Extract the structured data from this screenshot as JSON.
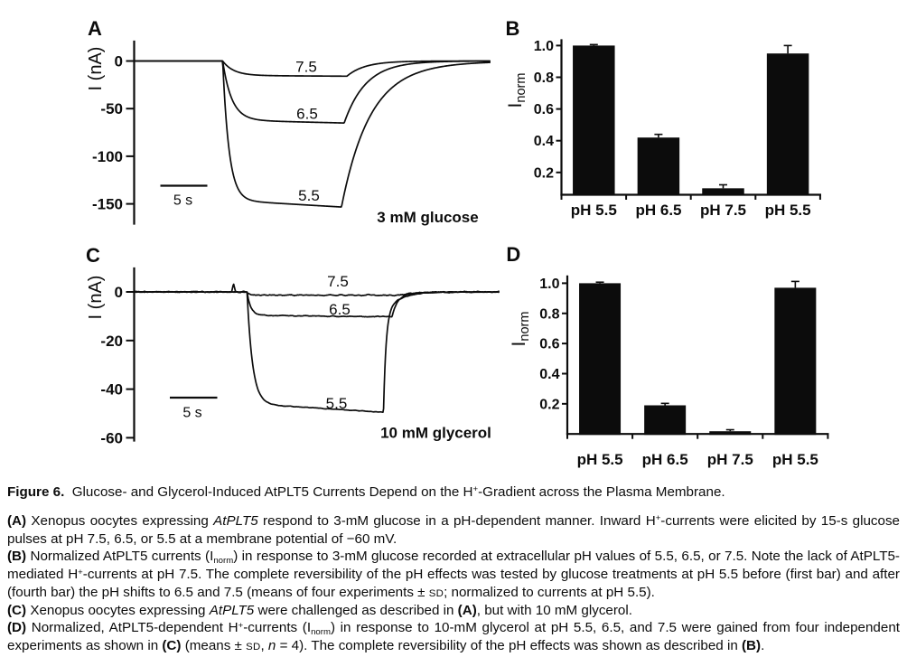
{
  "figure": {
    "panels": {
      "a": {
        "letter": "A",
        "y_axis_label": "I (nA)",
        "yticks": [
          "0",
          "-50",
          "-100",
          "-150"
        ],
        "scale_bar_label": "5 s",
        "condition": "3 mM glucose",
        "trace_labels": [
          "7.5",
          "6.5",
          "5.5"
        ]
      },
      "b": {
        "letter": "B",
        "y_axis_label_main": "I",
        "y_axis_label_sub": "norm",
        "yticks": [
          "1.0",
          "0.8",
          "0.6",
          "0.4",
          "0.2"
        ],
        "categories": [
          "pH 5.5",
          "pH 6.5",
          "pH 7.5",
          "pH 5.5"
        ]
      },
      "c": {
        "letter": "C",
        "y_axis_label": "I (nA)",
        "yticks": [
          "0",
          "-20",
          "-40",
          "-60"
        ],
        "scale_bar_label": "5 s",
        "condition": "10 mM glycerol",
        "trace_labels": [
          "7.5",
          "6.5",
          "5.5"
        ]
      },
      "d": {
        "letter": "D",
        "y_axis_label_main": "I",
        "y_axis_label_sub": "norm",
        "yticks": [
          "1.0",
          "0.8",
          "0.6",
          "0.4",
          "0.2"
        ],
        "categories": [
          "pH 5.5",
          "pH 6.5",
          "pH 7.5",
          "pH 5.5"
        ]
      }
    },
    "caption": {
      "lines": [
        {
          "justify": false,
          "runs": [
            {
              "t": "Figure 6.",
              "b": true
            },
            {
              "t": "  Glucose- and Glycerol-Induced AtPLT5 Currents Depend on the H"
            },
            {
              "t": "+",
              "sup": true
            },
            {
              "t": "-Gradient across the Plasma Membrane."
            }
          ]
        },
        {
          "justify": true,
          "runs": [
            {
              "t": "(A)",
              "b": true
            },
            {
              "t": " Xenopus oocytes expressing "
            },
            {
              "t": "AtPLT5",
              "i": true
            },
            {
              "t": " respond to 3-mM glucose in a pH-dependent manner. Inward H"
            },
            {
              "t": "+",
              "sup": true
            },
            {
              "t": "-currents were elicited by 15-s glucose"
            }
          ]
        },
        {
          "justify": false,
          "runs": [
            {
              "t": "pulses at pH 7.5, 6.5, or 5.5 at a membrane potential of −60 mV."
            }
          ]
        },
        {
          "justify": true,
          "runs": [
            {
              "t": "(B)",
              "b": true
            },
            {
              "t": " Normalized AtPLT5 currents (I"
            },
            {
              "t": "norm",
              "sub": true
            },
            {
              "t": ") in response to 3-mM glucose recorded at extracellular pH values of 5.5, 6.5, or 7.5. Note the lack of AtPLT5-"
            }
          ]
        },
        {
          "justify": true,
          "runs": [
            {
              "t": "mediated H"
            },
            {
              "t": "+",
              "sup": true
            },
            {
              "t": "-currents at pH 7.5. The complete reversibility of the pH effects was tested by glucose treatments at pH 5.5 before (first bar) and after"
            }
          ]
        },
        {
          "justify": false,
          "runs": [
            {
              "t": "(fourth bar) the pH shifts to 6.5 and 7.5 (means of four experiments ± "
            },
            {
              "t": "sd",
              "sc": true
            },
            {
              "t": "; normalized to currents at pH 5.5)."
            }
          ]
        },
        {
          "justify": false,
          "runs": [
            {
              "t": "(C)",
              "b": true
            },
            {
              "t": " Xenopus oocytes expressing "
            },
            {
              "t": "AtPLT5",
              "i": true
            },
            {
              "t": " were challenged as described in "
            },
            {
              "t": "(A)",
              "b": true
            },
            {
              "t": ", but with 10 mM glycerol."
            }
          ]
        },
        {
          "justify": true,
          "runs": [
            {
              "t": "(D)",
              "b": true
            },
            {
              "t": " Normalized, AtPLT5-dependent H"
            },
            {
              "t": "+",
              "sup": true
            },
            {
              "t": "-currents (I"
            },
            {
              "t": "norm",
              "sub": true
            },
            {
              "t": ") in response to 10-mM glycerol at pH 5.5, 6.5, and 7.5 were gained from four independent"
            }
          ]
        },
        {
          "justify": false,
          "runs": [
            {
              "t": "experiments as shown in "
            },
            {
              "t": "(C)",
              "b": true
            },
            {
              "t": " (means ± "
            },
            {
              "t": "sd",
              "sc": true
            },
            {
              "t": ", "
            },
            {
              "t": "n",
              "i": true
            },
            {
              "t": " = 4). The complete reversibility of the pH effects was shown as described in "
            },
            {
              "t": "(B)",
              "b": true
            },
            {
              "t": "."
            }
          ]
        }
      ]
    }
  },
  "chart_data": [
    {
      "panel": "A",
      "type": "line",
      "title": "3 mM glucose",
      "ylabel": "I (nA)",
      "yticks": [
        0,
        -50,
        -100,
        -150
      ],
      "x_scale_bar": "5 s",
      "series": [
        {
          "name": "pH 7.5",
          "label": "7.5",
          "plateau_nA": -16
        },
        {
          "name": "pH 6.5",
          "label": "6.5",
          "plateau_nA": -65
        },
        {
          "name": "pH 5.5",
          "label": "5.5",
          "plateau_nA": -152
        }
      ],
      "note": "15-s substrate pulses; inward currents at -60 mV"
    },
    {
      "panel": "B",
      "type": "bar",
      "ylabel": "Inorm",
      "categories": [
        "pH 5.5",
        "pH 6.5",
        "pH 7.5",
        "pH 5.5"
      ],
      "values": [
        1.0,
        0.42,
        0.1,
        0.95
      ],
      "errors": [
        0.006,
        0.02,
        0.022,
        0.05
      ],
      "ylim": [
        0,
        1.05
      ],
      "yticks": [
        1.0,
        0.8,
        0.6,
        0.4,
        0.2
      ]
    },
    {
      "panel": "C",
      "type": "line",
      "title": "10 mM glycerol",
      "ylabel": "I (nA)",
      "yticks": [
        0,
        -20,
        -40,
        -60
      ],
      "x_scale_bar": "5 s",
      "series": [
        {
          "name": "pH 7.5",
          "label": "7.5",
          "plateau_nA": -1.5
        },
        {
          "name": "pH 6.5",
          "label": "6.5",
          "plateau_nA": -10
        },
        {
          "name": "pH 5.5",
          "label": "5.5",
          "plateau_nA": -49
        }
      ],
      "note": "15-s substrate pulses; inward currents at -60 mV"
    },
    {
      "panel": "D",
      "type": "bar",
      "ylabel": "Inorm",
      "categories": [
        "pH 5.5",
        "pH 6.5",
        "pH 7.5",
        "pH 5.5"
      ],
      "values": [
        1.0,
        0.19,
        0.018,
        0.97
      ],
      "errors": [
        0.007,
        0.013,
        0.01,
        0.042
      ],
      "ylim": [
        0,
        1.05
      ],
      "yticks": [
        1.0,
        0.8,
        0.6,
        0.4,
        0.2
      ]
    }
  ]
}
